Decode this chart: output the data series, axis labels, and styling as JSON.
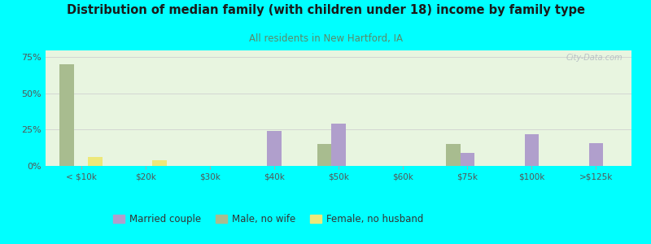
{
  "title": "Distribution of median family (with children under 18) income by family type",
  "subtitle": "All residents in New Hartford, IA",
  "categories": [
    "< $10k",
    "$20k",
    "$30k",
    "$40k",
    "$50k",
    "$60k",
    "$75k",
    "$100k",
    ">$125k"
  ],
  "married_couple": [
    0,
    0,
    0,
    24,
    29,
    0,
    9,
    22,
    16
  ],
  "male_no_wife": [
    70,
    0,
    0,
    0,
    15,
    0,
    15,
    0,
    0
  ],
  "female_no_husband": [
    6,
    4,
    0,
    0,
    0,
    0,
    0,
    0,
    0
  ],
  "married_color": "#b09fcc",
  "male_color": "#a8bc8f",
  "female_color": "#ede87a",
  "bg_color": "#00ffff",
  "title_color": "#1a1a1a",
  "subtitle_color": "#5a8a6a",
  "axis_color": "#555555",
  "grid_color": "#d0d0d0",
  "yticks": [
    0,
    25,
    50,
    75
  ],
  "ylim": [
    0,
    80
  ],
  "bar_width": 0.22,
  "watermark": "City-Data.com",
  "legend_labels": [
    "Married couple",
    "Male, no wife",
    "Female, no husband"
  ]
}
